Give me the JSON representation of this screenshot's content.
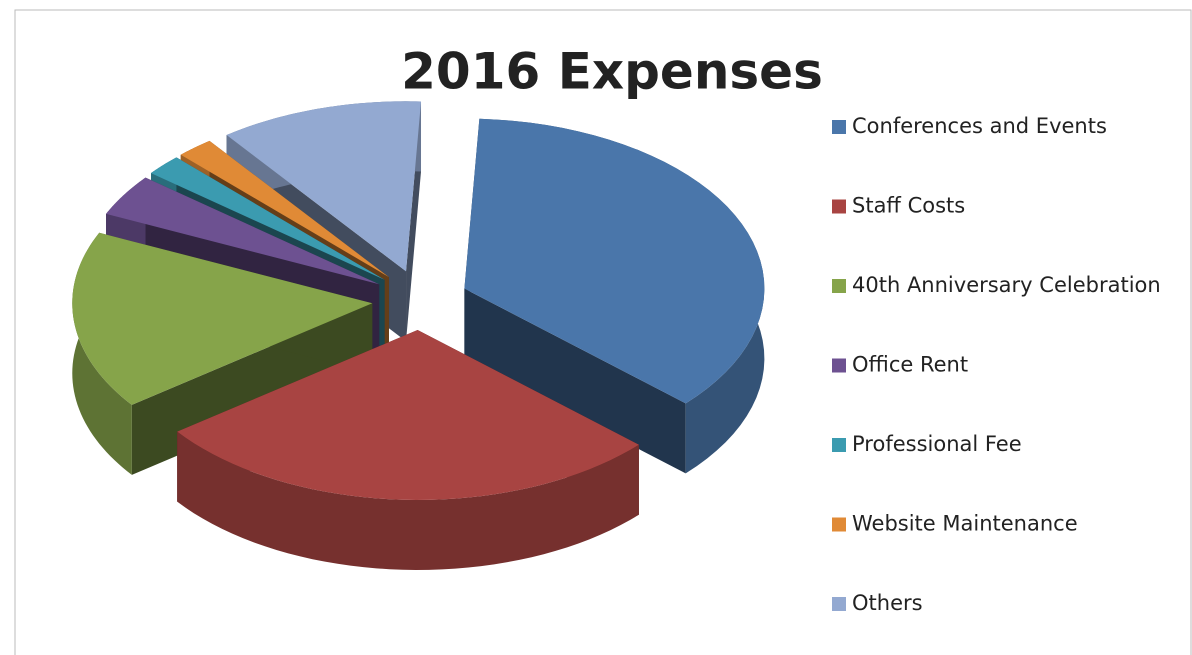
{
  "chart_data": {
    "type": "pie",
    "title": "2016 Expenses",
    "categories": [
      "Conferences and Events",
      "Staff Costs",
      "40th Anniversary Celebration",
      "Office Rent",
      "Professional Fee",
      "Website Maintenance",
      "Others"
    ],
    "values": [
      36,
      28,
      17,
      4,
      2,
      2,
      11
    ],
    "colors": [
      "#4a76aa",
      "#a84442",
      "#86a44a",
      "#6d5191",
      "#3b9bb0",
      "#e08a36",
      "#93a9d1"
    ],
    "legend": "right"
  }
}
